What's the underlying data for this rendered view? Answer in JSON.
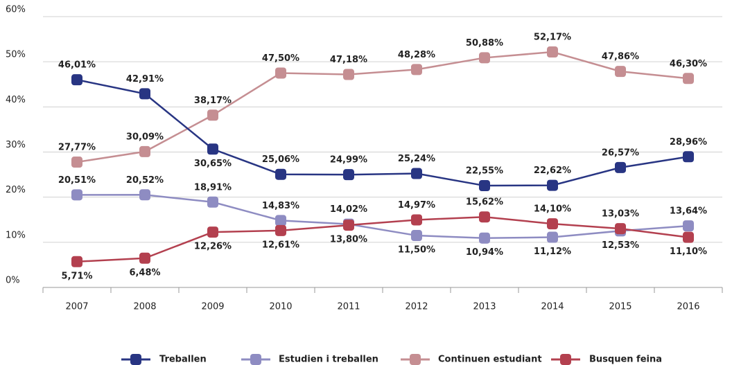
{
  "chart_data": {
    "type": "line",
    "categories": [
      "2007",
      "2008",
      "2009",
      "2010",
      "2011",
      "2012",
      "2013",
      "2014",
      "2015",
      "2016"
    ],
    "ylim": [
      0,
      60
    ],
    "yticks": [
      {
        "value": 0,
        "label": "0%"
      },
      {
        "value": 10,
        "label": "10%"
      },
      {
        "value": 20,
        "label": "20%"
      },
      {
        "value": 30,
        "label": "30%"
      },
      {
        "value": 40,
        "label": "40%"
      },
      {
        "value": 50,
        "label": "50%"
      },
      {
        "value": 60,
        "label": "60%"
      }
    ],
    "grid": true,
    "legend": "bottom",
    "series": [
      {
        "name": "Treballen",
        "color": "#283583",
        "values": [
          46.01,
          42.91,
          30.65,
          25.06,
          24.99,
          25.24,
          22.55,
          22.62,
          26.57,
          28.96
        ],
        "value_labels": [
          "46,01%",
          "42,91%",
          "30,65%",
          "25,06%",
          "24,99%",
          "25,24%",
          "22,55%",
          "22,62%",
          "26,57%",
          "28,96%"
        ]
      },
      {
        "name": "Estudien i treballen",
        "color": "#8e8cc2",
        "values": [
          20.51,
          20.52,
          18.91,
          14.83,
          14.02,
          11.5,
          10.94,
          11.12,
          12.53,
          13.64
        ],
        "value_labels": [
          "20,51%",
          "20,52%",
          "18,91%",
          "14,83%",
          "14,02%",
          "11,50%",
          "10,94%",
          "11,12%",
          "12,53%",
          "13,64%"
        ]
      },
      {
        "name": "Continuen estudiant",
        "color": "#c58e92",
        "values": [
          27.77,
          30.09,
          38.17,
          47.5,
          47.18,
          48.28,
          50.88,
          52.17,
          47.86,
          46.3
        ],
        "value_labels": [
          "27,77%",
          "30,09%",
          "38,17%",
          "47,50%",
          "47,18%",
          "48,28%",
          "50,88%",
          "52,17%",
          "47,86%",
          "46,30%"
        ]
      },
      {
        "name": "Busquen feina",
        "color": "#b3404f",
        "values": [
          5.71,
          6.48,
          12.26,
          12.61,
          13.8,
          14.97,
          15.62,
          14.1,
          13.03,
          11.1
        ],
        "value_labels": [
          "5,71%",
          "6,48%",
          "12,26%",
          "12,61%",
          "13,80%",
          "14,97%",
          "15,62%",
          "14,10%",
          "13,03%",
          "11,10%"
        ]
      }
    ]
  }
}
